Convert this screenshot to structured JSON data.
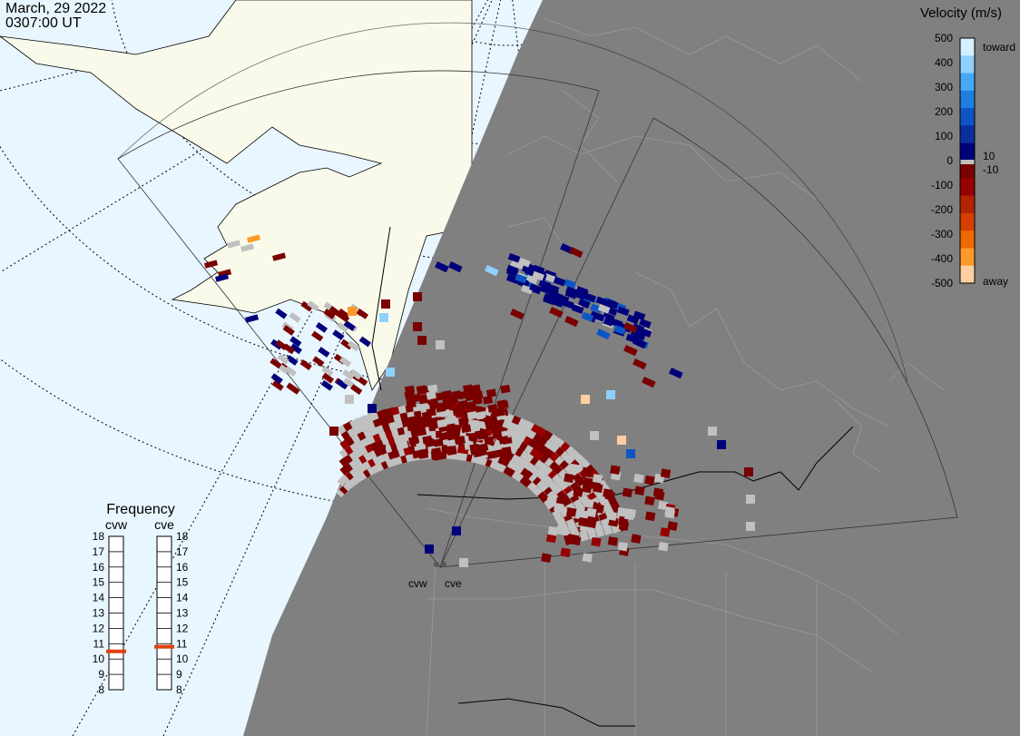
{
  "header": {
    "date": "March, 29 2022",
    "time": "0307:00 UT"
  },
  "velocity_legend": {
    "title": "Velocity (m/s)",
    "ticks": [
      "500",
      "400",
      "300",
      "200",
      "100",
      "0",
      "-100",
      "-200",
      "-300",
      "-400",
      "-500"
    ],
    "labels": {
      "toward": "toward",
      "away": "away",
      "pos_threshold": "10",
      "neg_threshold": "-10"
    },
    "colors": [
      "#d6f0ff",
      "#8fd0ff",
      "#45aaf5",
      "#1f7ee0",
      "#0d55c4",
      "#082f9c",
      "#00007a",
      "#7a0000",
      "#960000",
      "#b32400",
      "#d43f00",
      "#f06800",
      "#ff9a2a",
      "#ffcfa0"
    ],
    "ground_scatter_color": "#c0c0c0"
  },
  "frequency_panel": {
    "title": "Frequency",
    "radars": [
      {
        "name": "cvw",
        "current_mhz": 10.5
      },
      {
        "name": "cve",
        "current_mhz": 10.8
      }
    ],
    "scale_mhz": [
      "18",
      "17",
      "16",
      "15",
      "14",
      "13",
      "12",
      "11",
      "10",
      "9",
      "8"
    ],
    "marker_color": "#e04010"
  },
  "radar_sites": [
    {
      "name": "cvw"
    },
    {
      "name": "cve"
    }
  ],
  "map_colors": {
    "ocean": "#e8f6ff",
    "land": "#fafaeb",
    "night": "#808080",
    "night_land_outline": "#a0a0a0"
  }
}
